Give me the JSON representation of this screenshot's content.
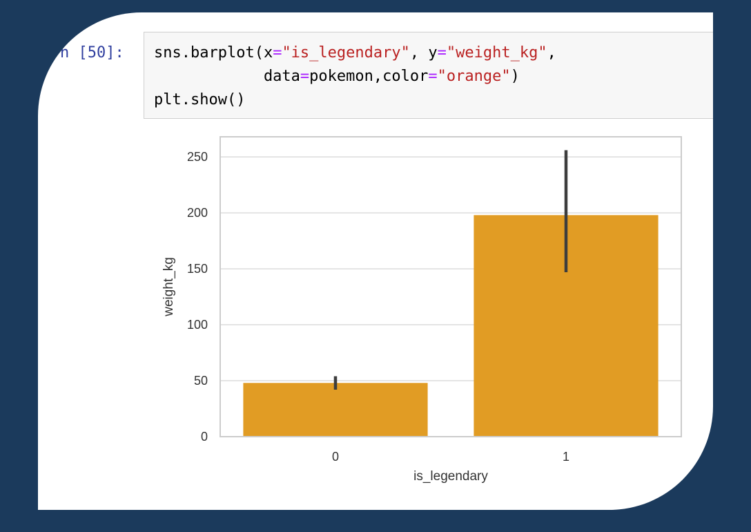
{
  "cell": {
    "prompt": "n [50]:",
    "code_lines": [
      [
        {
          "t": "sns.barplot(x",
          "c": "plain"
        },
        {
          "t": "=",
          "c": "eq"
        },
        {
          "t": "\"is_legendary\"",
          "c": "str"
        },
        {
          "t": ", y",
          "c": "plain"
        },
        {
          "t": "=",
          "c": "eq"
        },
        {
          "t": "\"weight_kg\"",
          "c": "str"
        },
        {
          "t": ",",
          "c": "plain"
        }
      ],
      [
        {
          "t": "            data",
          "c": "plain"
        },
        {
          "t": "=",
          "c": "eq"
        },
        {
          "t": "pokemon,color",
          "c": "plain"
        },
        {
          "t": "=",
          "c": "eq"
        },
        {
          "t": "\"orange\"",
          "c": "str"
        },
        {
          "t": ")",
          "c": "plain"
        }
      ],
      [
        {
          "t": "plt.show()",
          "c": "plain"
        }
      ]
    ]
  },
  "chart_data": {
    "type": "bar",
    "categories": [
      "0",
      "1"
    ],
    "values": [
      48,
      198
    ],
    "error_bars": [
      [
        42,
        54
      ],
      [
        147,
        256
      ]
    ],
    "xlabel": "is_legendary",
    "ylabel": "weight_kg",
    "ylim": [
      0,
      268
    ],
    "yticks": [
      0,
      50,
      100,
      150,
      200,
      250
    ],
    "grid": true,
    "bar_color": "#e19c24",
    "errorbar_color": "#3d3d3d",
    "grid_color": "#dcdcdc"
  }
}
